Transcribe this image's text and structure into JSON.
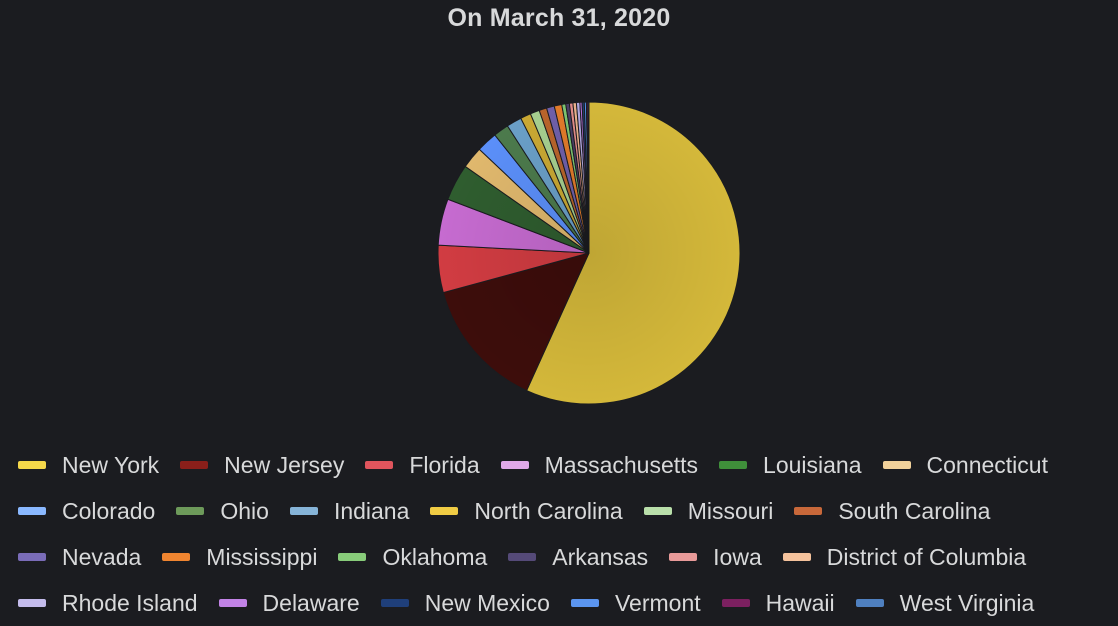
{
  "chart_data": {
    "type": "pie",
    "title": "On March 31, 2020",
    "legend_position": "bottom",
    "slices": [
      {
        "label": "New York",
        "value": 75795,
        "color": "#d4b83a"
      },
      {
        "label": "New Jersey",
        "value": 18696,
        "color": "#3d0d0b"
      },
      {
        "label": "Florida",
        "value": 6741,
        "color": "#d13c42"
      },
      {
        "label": "Massachusetts",
        "value": 6620,
        "color": "#c66bd0"
      },
      {
        "label": "Louisiana",
        "value": 5237,
        "color": "#2f5d2f"
      },
      {
        "label": "Connecticut",
        "value": 3128,
        "color": "#e0b86d"
      },
      {
        "label": "Colorado",
        "value": 2966,
        "color": "#5b8ff9"
      },
      {
        "label": "Ohio",
        "value": 2199,
        "color": "#4c7a4c"
      },
      {
        "label": "Indiana",
        "value": 2159,
        "color": "#6a9fc7"
      },
      {
        "label": "North Carolina",
        "value": 1498,
        "color": "#c9a833"
      },
      {
        "label": "Missouri",
        "value": 1327,
        "color": "#a6cf8f"
      },
      {
        "label": "South Carolina",
        "value": 1083,
        "color": "#b8642b"
      },
      {
        "label": "Nevada",
        "value": 1113,
        "color": "#6f5fa8"
      },
      {
        "label": "Mississippi",
        "value": 1073,
        "color": "#e07a2a"
      },
      {
        "label": "Oklahoma",
        "value": 565,
        "color": "#7cc470"
      },
      {
        "label": "Arkansas",
        "value": 523,
        "color": "#4a3f66"
      },
      {
        "label": "Iowa",
        "value": 497,
        "color": "#e08a88"
      },
      {
        "label": "District of Columbia",
        "value": 495,
        "color": "#e8b08a"
      },
      {
        "label": "Rhode Island",
        "value": 488,
        "color": "#b0a6dd"
      },
      {
        "label": "Delaware",
        "value": 319,
        "color": "#b06ed6"
      },
      {
        "label": "New Mexico",
        "value": 315,
        "color": "#1f3d73"
      },
      {
        "label": "Vermont",
        "value": 293,
        "color": "#4f8fe8"
      },
      {
        "label": "Hawaii",
        "value": 204,
        "color": "#7a1f5c"
      },
      {
        "label": "West Virginia",
        "value": 162,
        "color": "#4a78b8"
      }
    ]
  },
  "legend": {
    "rows": [
      [
        {
          "label": "New York",
          "color": "#f5d84a"
        },
        {
          "label": "New Jersey",
          "color": "#8a1f1a"
        },
        {
          "label": "Florida",
          "color": "#e0555d"
        },
        {
          "label": "Massachusetts",
          "color": "#e0a8e8"
        },
        {
          "label": "Louisiana",
          "color": "#3f8f3a"
        },
        {
          "label": "Connecticut",
          "color": "#f2d29b"
        }
      ],
      [
        {
          "label": "Colorado",
          "color": "#8ab8ff"
        },
        {
          "label": "Ohio",
          "color": "#6d9a5a"
        },
        {
          "label": "Indiana",
          "color": "#86b4d8"
        },
        {
          "label": "North Carolina",
          "color": "#f0cc44"
        },
        {
          "label": "Missouri",
          "color": "#b9dfaa"
        },
        {
          "label": "South Carolina",
          "color": "#c8683a"
        }
      ],
      [
        {
          "label": "Nevada",
          "color": "#7a6cb8"
        },
        {
          "label": "Mississippi",
          "color": "#f08530"
        },
        {
          "label": "Oklahoma",
          "color": "#88cc7a"
        },
        {
          "label": "Arkansas",
          "color": "#554a78"
        },
        {
          "label": "Iowa",
          "color": "#e89a99"
        },
        {
          "label": "District of Columbia",
          "color": "#f5c29c"
        }
      ],
      [
        {
          "label": "Rhode Island",
          "color": "#c4bcec"
        },
        {
          "label": "Delaware",
          "color": "#c283e6"
        },
        {
          "label": "New Mexico",
          "color": "#1f3f7a"
        },
        {
          "label": "Vermont",
          "color": "#5b95f0"
        },
        {
          "label": "Hawaii",
          "color": "#7c2060"
        },
        {
          "label": "West Virginia",
          "color": "#4f80c0"
        }
      ]
    ]
  }
}
